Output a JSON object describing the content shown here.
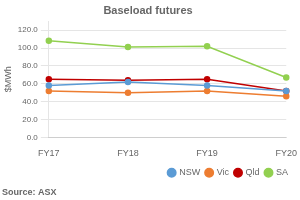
{
  "chart_data": {
    "type": "line",
    "title": "Baseload futures",
    "categories": [
      "FY17",
      "FY18",
      "FY19",
      "FY20"
    ],
    "series": [
      {
        "name": "NSW",
        "color": "#5b9bd5",
        "marker": "circle",
        "values": [
          58,
          62,
          58,
          52
        ]
      },
      {
        "name": "Vic",
        "color": "#ed7d31",
        "marker": "circle",
        "values": [
          52,
          50,
          52,
          46
        ]
      },
      {
        "name": "Qld",
        "color": "#c00000",
        "marker": "circle",
        "values": [
          65,
          64,
          65,
          52
        ]
      },
      {
        "name": "SA",
        "color": "#92d050",
        "marker": "circle",
        "values": [
          108,
          101,
          102,
          67
        ]
      }
    ],
    "y_label": "$MWh",
    "ylim": [
      0,
      130
    ],
    "yticks": [
      {
        "value": 0,
        "label": "0.0"
      },
      {
        "value": 20,
        "label": "20.0"
      },
      {
        "value": 40,
        "label": "40.0"
      },
      {
        "value": 60,
        "label": "60.0"
      },
      {
        "value": 80,
        "label": "80.0"
      },
      {
        "value": 100,
        "label": "100.0"
      },
      {
        "value": 120,
        "label": "120.0"
      }
    ],
    "grid": "y",
    "legend": "bottom",
    "annotations": [
      "Source: ASX"
    ]
  }
}
